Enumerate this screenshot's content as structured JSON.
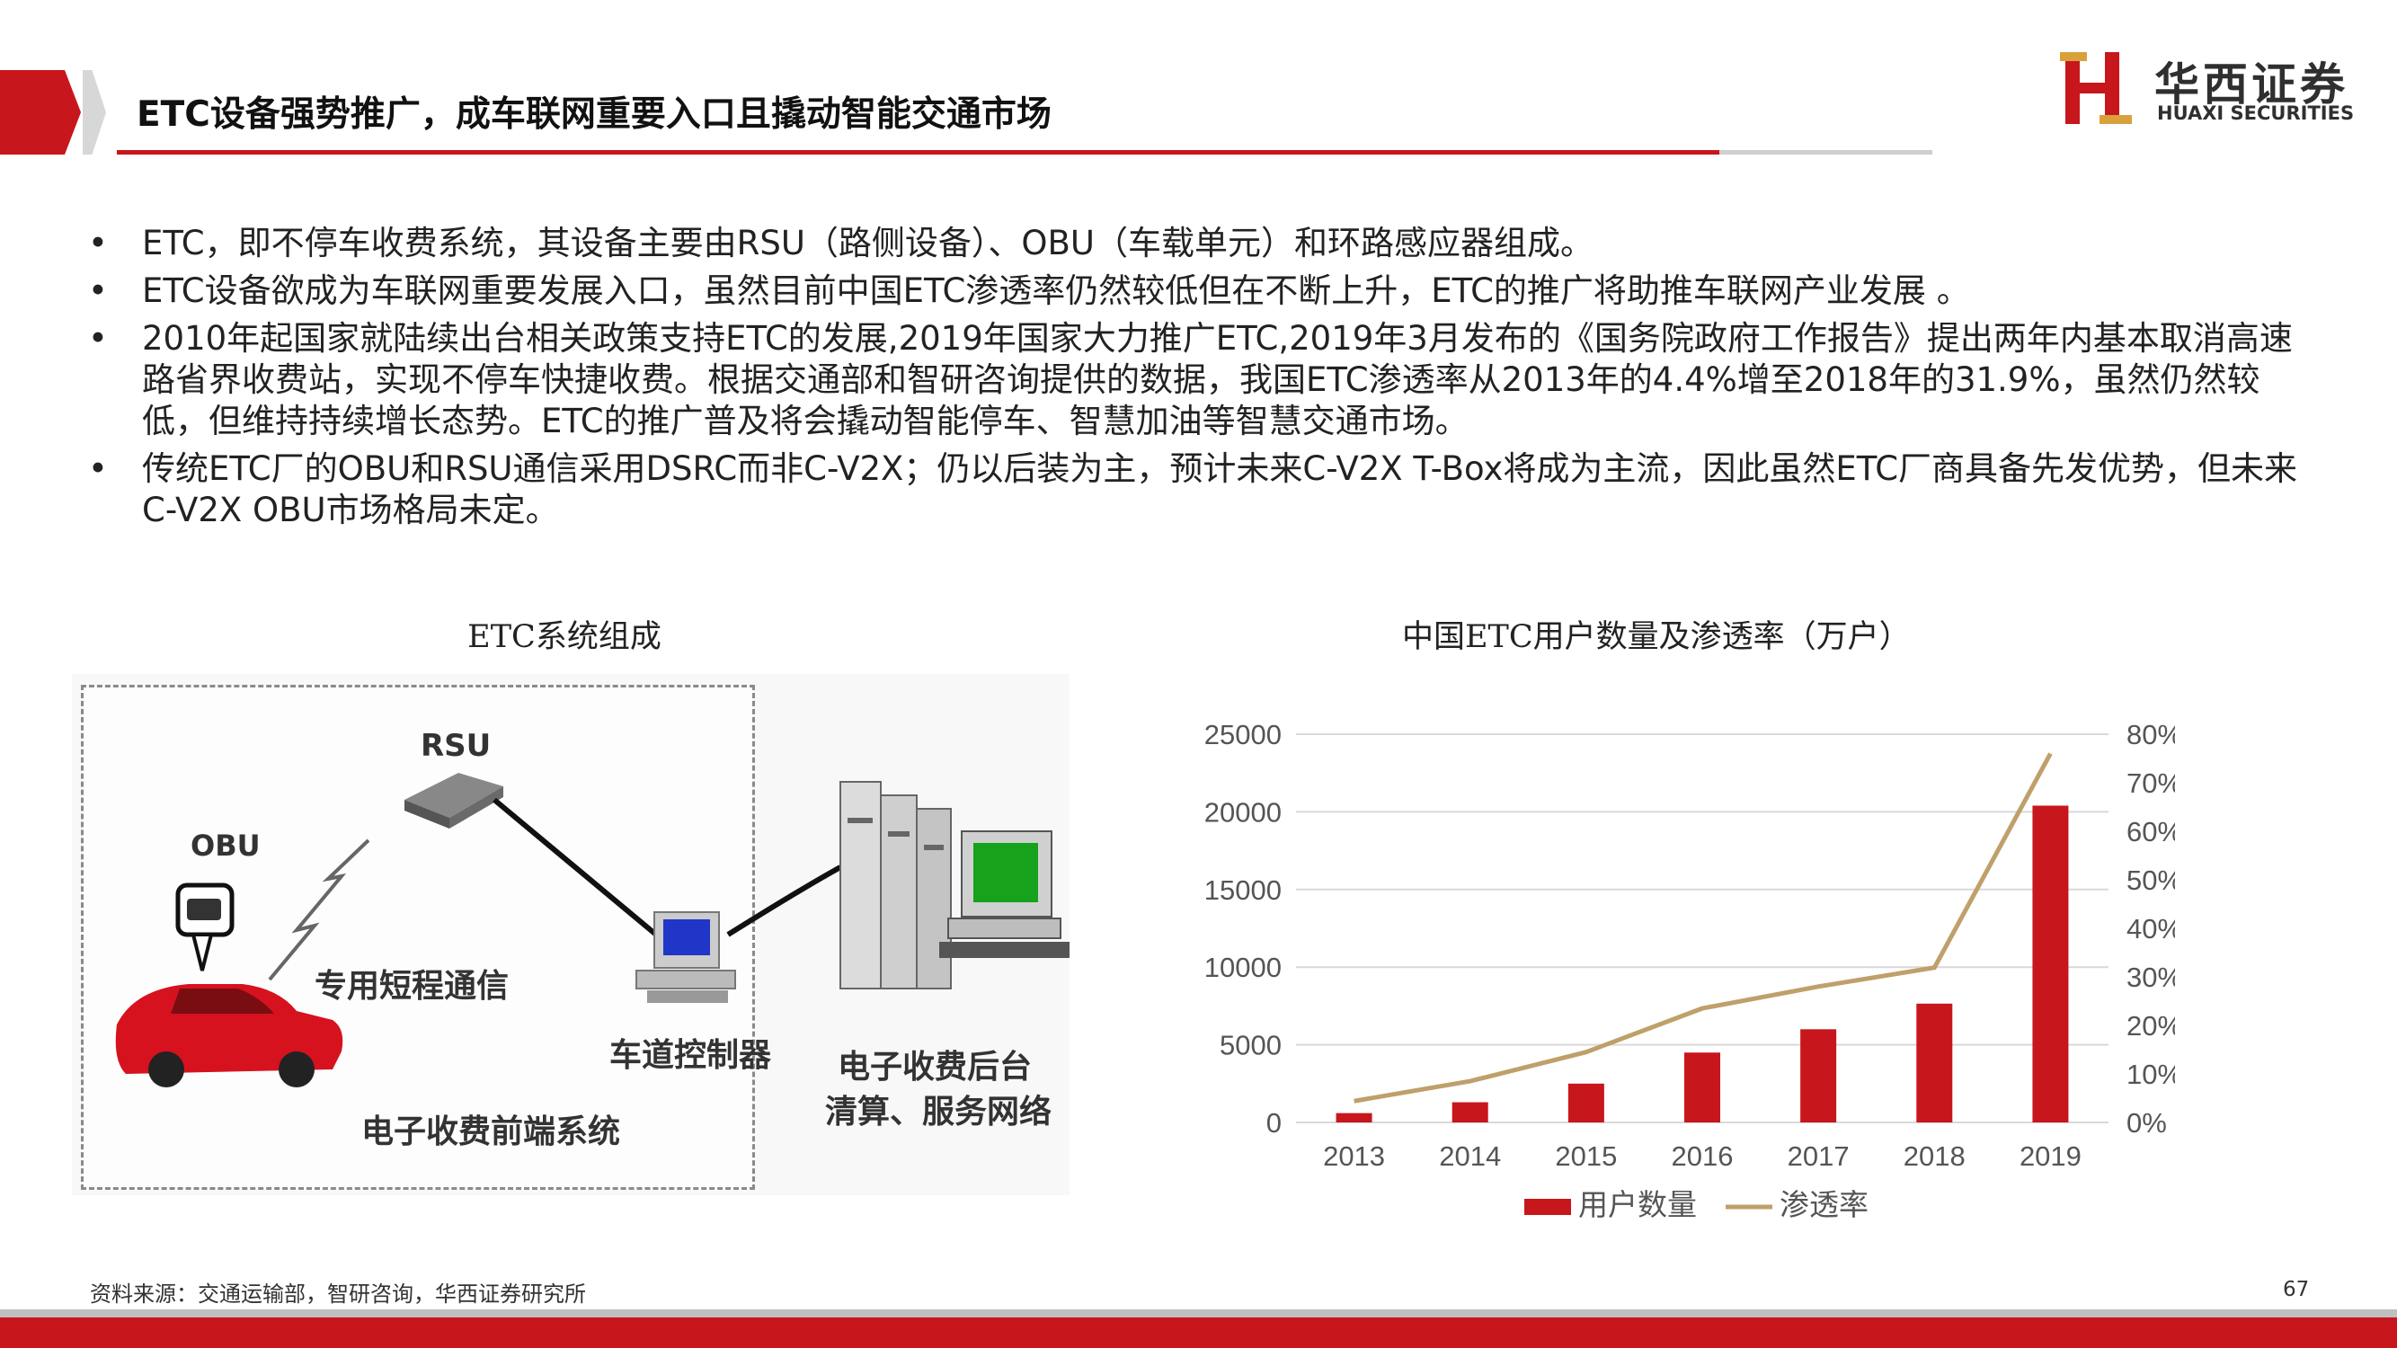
{
  "header": {
    "title": "ETC设备强势推广，成车联网重要入口且撬动智能交通市场",
    "logo_cn": "华西证券",
    "logo_en": "HUAXI SECURITIES"
  },
  "bullets": [
    "ETC，即不停车收费系统，其设备主要由RSU（路侧设备）、OBU（车载单元）和环路感应器组成。",
    "ETC设备欲成为车联网重要发展入口，虽然目前中国ETC渗透率仍然较低但在不断上升，ETC的推广将助推车联网产业发展 。",
    "2010年起国家就陆续出台相关政策支持ETC的发展,2019年国家大力推广ETC,2019年3月发布的《国务院政府工作报告》提出两年内基本取消高速路省界收费站，实现不停车快捷收费。根据交通部和智研咨询提供的数据，我国ETC渗透率从2013年的4.4%增至2018年的31.9%，虽然仍然较低，但维持持续增长态势。ETC的推广普及将会撬动智能停车、智慧加油等智慧交通市场。",
    "传统ETC厂的OBU和RSU通信采用DSRC而非C-V2X；仍以后装为主，预计未来C-V2X T-Box将成为主流，因此虽然ETC厂商具备先发优势，但未来C-V2X OBU市场格局未定。"
  ],
  "bullet_marker": "•",
  "diagram": {
    "caption": "ETC系统组成",
    "labels": {
      "rsu": "RSU",
      "obu": "OBU",
      "dsrc": "专用短程通信",
      "lane_controller": "车道控制器",
      "backend_line1": "电子收费后台",
      "backend_line2": "清算、服务网络",
      "frontend": "电子收费前端系统"
    }
  },
  "chart_data": {
    "type": "bar",
    "title": "中国ETC用户数量及渗透率（万户）",
    "categories": [
      "2013",
      "2014",
      "2015",
      "2016",
      "2017",
      "2018",
      "2019"
    ],
    "series": [
      {
        "name": "用户数量",
        "type": "bar",
        "axis": "left",
        "values": [
          600,
          1300,
          2500,
          4500,
          6000,
          7650,
          20400
        ]
      },
      {
        "name": "渗透率",
        "type": "line",
        "axis": "right",
        "values": [
          4.4,
          8.5,
          14.5,
          23.5,
          28.0,
          31.9,
          76.0
        ]
      }
    ],
    "y_left": {
      "min": 0,
      "max": 25000,
      "ticks": [
        "0",
        "5000",
        "10000",
        "15000",
        "20000",
        "25000"
      ]
    },
    "y_right": {
      "min": 0,
      "max": 80,
      "ticks": [
        "0%",
        "10%",
        "20%",
        "30%",
        "40%",
        "50%",
        "60%",
        "70%",
        "80%"
      ]
    },
    "grid": true,
    "legend_position": "bottom",
    "colors": {
      "bar": "#c8161d",
      "line": "#bfa06a"
    }
  },
  "footer": {
    "source": "资料来源：交通运输部，智研咨询，华西证券研究所",
    "page": "67"
  },
  "colors": {
    "accent_red": "#c8161d",
    "rule_grey": "#cfcfcf"
  }
}
